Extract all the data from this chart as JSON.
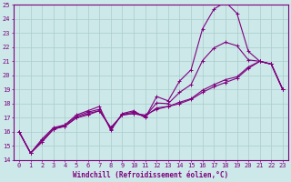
{
  "xlabel": "Windchill (Refroidissement éolien,°C)",
  "xlim": [
    -0.5,
    23.5
  ],
  "ylim": [
    14,
    25
  ],
  "yticks": [
    14,
    15,
    16,
    17,
    18,
    19,
    20,
    21,
    22,
    23,
    24,
    25
  ],
  "xticks": [
    0,
    1,
    2,
    3,
    4,
    5,
    6,
    7,
    8,
    9,
    10,
    11,
    12,
    13,
    14,
    15,
    16,
    17,
    18,
    19,
    20,
    21,
    22,
    23
  ],
  "bg_color": "#cce8e8",
  "line_color": "#800080",
  "grid_color": "#aacccc",
  "lines": [
    {
      "x": [
        0,
        1,
        2,
        3,
        4,
        5,
        6,
        7,
        8,
        9,
        10,
        11,
        12,
        13,
        14,
        15,
        16,
        17,
        18,
        19,
        20,
        21,
        22,
        23
      ],
      "y": [
        16.0,
        14.5,
        15.5,
        16.3,
        16.5,
        17.2,
        17.5,
        17.8,
        16.1,
        17.3,
        17.5,
        17.0,
        18.5,
        18.2,
        19.6,
        20.4,
        23.3,
        24.7,
        25.2,
        24.4,
        21.7,
        21.0,
        20.8,
        19.0
      ]
    },
    {
      "x": [
        0,
        1,
        2,
        3,
        4,
        5,
        6,
        7,
        8,
        9,
        10,
        11,
        12,
        13,
        14,
        15,
        16,
        17,
        18,
        19,
        20,
        21,
        22,
        23
      ],
      "y": [
        16.0,
        14.5,
        15.3,
        16.2,
        16.4,
        17.0,
        17.3,
        17.5,
        16.3,
        17.2,
        17.3,
        17.2,
        17.6,
        17.8,
        18.0,
        18.3,
        18.8,
        19.2,
        19.5,
        19.8,
        20.5,
        21.0,
        20.8,
        19.0
      ]
    },
    {
      "x": [
        0,
        1,
        2,
        3,
        4,
        5,
        6,
        7,
        8,
        9,
        10,
        11,
        12,
        13,
        14,
        15,
        16,
        17,
        18,
        19,
        20,
        21,
        22,
        23
      ],
      "y": [
        16.0,
        14.5,
        15.4,
        16.2,
        16.5,
        17.1,
        17.4,
        17.6,
        16.2,
        17.25,
        17.4,
        17.1,
        18.05,
        18.0,
        18.8,
        19.35,
        21.05,
        21.95,
        22.35,
        22.1,
        21.1,
        21.0,
        20.8,
        19.0
      ]
    },
    {
      "x": [
        0,
        1,
        2,
        3,
        4,
        5,
        6,
        7,
        8,
        9,
        10,
        11,
        12,
        13,
        14,
        15,
        16,
        17,
        18,
        19,
        20,
        21,
        22,
        23
      ],
      "y": [
        16.0,
        14.5,
        15.3,
        16.2,
        16.4,
        17.0,
        17.2,
        17.5,
        16.3,
        17.2,
        17.3,
        17.1,
        17.7,
        17.8,
        18.1,
        18.35,
        18.95,
        19.35,
        19.7,
        19.9,
        20.6,
        21.0,
        20.8,
        19.0
      ]
    }
  ],
  "marker": "+",
  "markersize": 3,
  "linewidth": 0.8,
  "label_fontsize": 5.5,
  "tick_fontsize": 5
}
